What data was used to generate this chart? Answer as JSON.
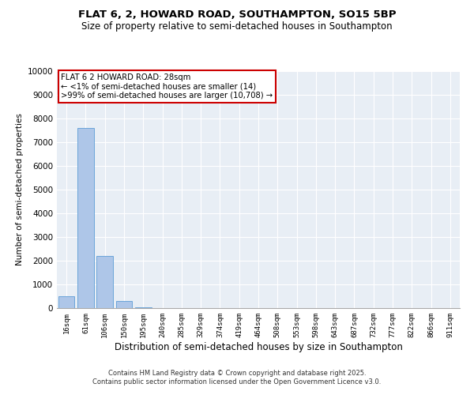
{
  "title1": "FLAT 6, 2, HOWARD ROAD, SOUTHAMPTON, SO15 5BP",
  "title2": "Size of property relative to semi-detached houses in Southampton",
  "xlabel": "Distribution of semi-detached houses by size in Southampton",
  "ylabel": "Number of semi-detached properties",
  "categories": [
    "16sqm",
    "61sqm",
    "106sqm",
    "150sqm",
    "195sqm",
    "240sqm",
    "285sqm",
    "329sqm",
    "374sqm",
    "419sqm",
    "464sqm",
    "508sqm",
    "553sqm",
    "598sqm",
    "643sqm",
    "687sqm",
    "732sqm",
    "777sqm",
    "822sqm",
    "866sqm",
    "911sqm"
  ],
  "values": [
    500,
    7600,
    2200,
    290,
    30,
    5,
    2,
    1,
    0,
    0,
    0,
    0,
    0,
    0,
    0,
    0,
    0,
    0,
    0,
    0,
    0
  ],
  "bar_color": "#aec6e8",
  "bar_edge_color": "#5b9bd5",
  "annotation_text": "FLAT 6 2 HOWARD ROAD: 28sqm\n← <1% of semi-detached houses are smaller (14)\n>99% of semi-detached houses are larger (10,708) →",
  "annotation_box_color": "#ffffff",
  "annotation_box_edge_color": "#cc0000",
  "ylim": [
    0,
    10000
  ],
  "yticks": [
    0,
    1000,
    2000,
    3000,
    4000,
    5000,
    6000,
    7000,
    8000,
    9000,
    10000
  ],
  "background_color": "#e8eef5",
  "footer1": "Contains HM Land Registry data © Crown copyright and database right 2025.",
  "footer2": "Contains public sector information licensed under the Open Government Licence v3.0."
}
